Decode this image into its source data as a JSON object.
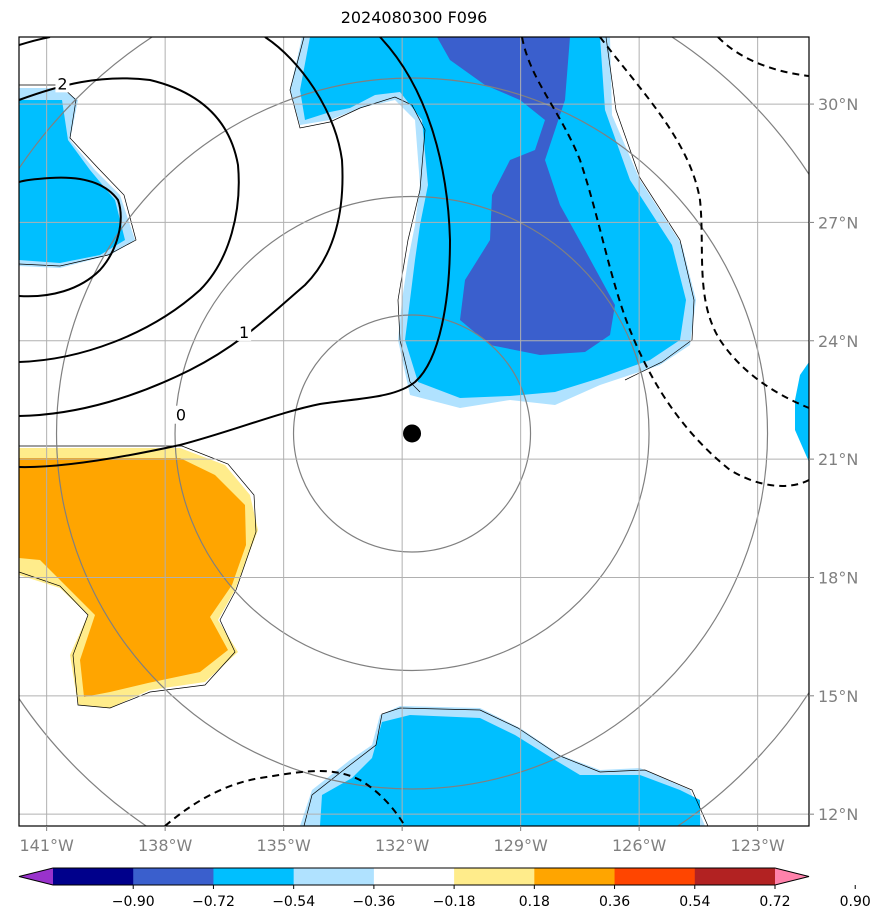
{
  "chart_data": {
    "type": "heatmap",
    "title": "2024080300 F096",
    "x_ticks": [
      "141°W",
      "138°W",
      "135°W",
      "132°W",
      "129°W",
      "126°W",
      "123°W"
    ],
    "x_tick_values": [
      -141,
      -138,
      -135,
      -132,
      -129,
      -126,
      -123
    ],
    "y_ticks": [
      "30°N",
      "27°N",
      "24°N",
      "21°N",
      "18°N",
      "15°N",
      "12°N"
    ],
    "y_tick_values": [
      30,
      27,
      24,
      21,
      18,
      15,
      12
    ],
    "xlim": [
      -141.7,
      -121.7
    ],
    "ylim": [
      11.7,
      31.7
    ],
    "grid": true,
    "center_marker": {
      "lon": -131.75,
      "lat": 21.65
    },
    "range_rings_deg": [
      3,
      6,
      9,
      12
    ],
    "contour_labels": [
      {
        "text": "2",
        "lon": -140.6,
        "lat": 30.5
      },
      {
        "text": "1",
        "lon": -136.0,
        "lat": 24.2
      },
      {
        "text": "0",
        "lon": -137.6,
        "lat": 22.1
      }
    ],
    "colorbar": {
      "levels": [
        "−0.90",
        "−0.72",
        "−0.54",
        "−0.36",
        "−0.18",
        "0.18",
        "0.36",
        "0.54",
        "0.72",
        "0.90"
      ],
      "colors": [
        "#9932cc",
        "#00008b",
        "#3a5fcd",
        "#00bfff",
        "#b0e2ff",
        "#ffffff",
        "#ffec8b",
        "#ffa500",
        "#ff4500",
        "#b22222",
        "#ff82ab"
      ]
    },
    "colors": {
      "dark_blue": "#3a5fcd",
      "blue": "#00bfff",
      "light_blue": "#b0e2ff",
      "light_yellow": "#ffec8b",
      "orange": "#ffa500"
    }
  }
}
